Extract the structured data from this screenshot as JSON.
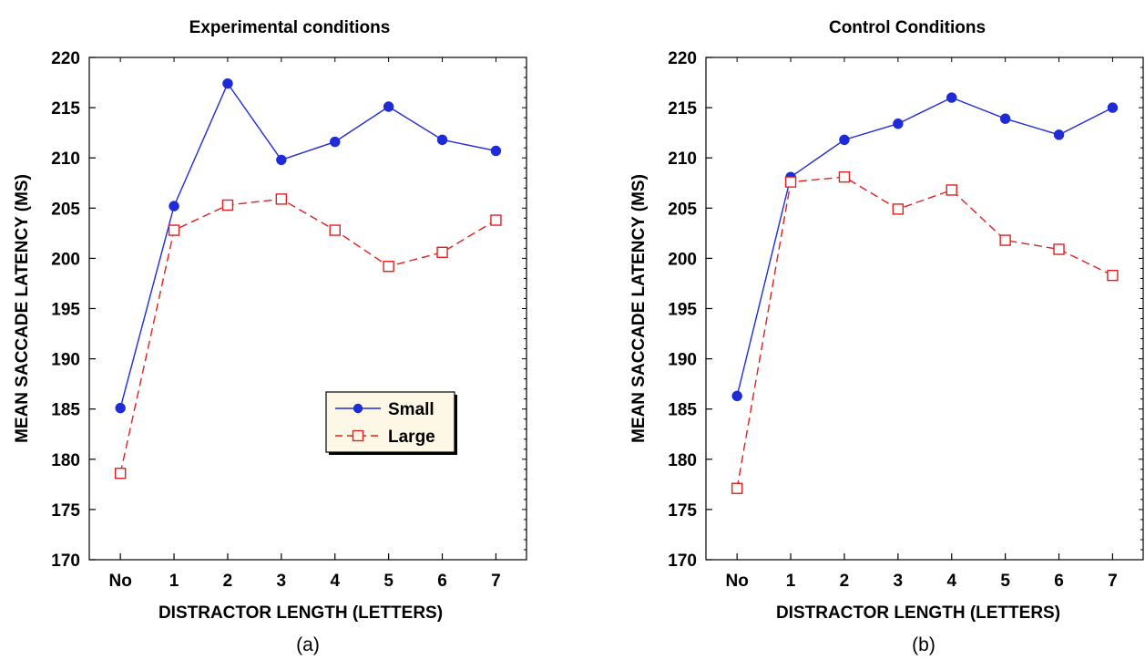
{
  "chart_data": [
    {
      "type": "line",
      "panel_label": "(a)",
      "title": "Experimental conditions",
      "xlabel": "DISTRACTOR LENGTH (LETTERS)",
      "ylabel": "MEAN SACCADE LATENCY (MS)",
      "categories": [
        "No",
        "1",
        "2",
        "3",
        "4",
        "5",
        "6",
        "7"
      ],
      "ylim": [
        170,
        220
      ],
      "yticks": [
        "170",
        "175",
        "180",
        "185",
        "190",
        "195",
        "200",
        "205",
        "210",
        "215",
        "220"
      ],
      "grid": false,
      "legend_position": "bottom-right",
      "series": [
        {
          "name": "Small",
          "color": "#1f2bd6",
          "line": "solid",
          "marker": "filled-circle",
          "values": [
            185.1,
            205.2,
            217.4,
            209.8,
            211.6,
            215.1,
            211.8,
            210.7
          ]
        },
        {
          "name": "Large",
          "color": "#e02020",
          "line": "dashed",
          "marker": "open-square",
          "values": [
            178.6,
            202.8,
            205.3,
            205.9,
            202.8,
            199.2,
            200.6,
            203.8
          ]
        }
      ]
    },
    {
      "type": "line",
      "panel_label": "(b)",
      "title": "Control Conditions",
      "xlabel": "DISTRACTOR LENGTH (LETTERS)",
      "ylabel": "MEAN SACCADE LATENCY (MS)",
      "categories": [
        "No",
        "1",
        "2",
        "3",
        "4",
        "5",
        "6",
        "7"
      ],
      "ylim": [
        170,
        220
      ],
      "yticks": [
        "170",
        "175",
        "180",
        "185",
        "190",
        "195",
        "200",
        "205",
        "210",
        "215",
        "220"
      ],
      "grid": false,
      "legend_position": "none",
      "series": [
        {
          "name": "Small",
          "color": "#1f2bd6",
          "line": "solid",
          "marker": "filled-circle",
          "values": [
            186.3,
            208.1,
            211.8,
            213.4,
            216.0,
            213.9,
            212.3,
            215.0
          ]
        },
        {
          "name": "Large",
          "color": "#e02020",
          "line": "dashed",
          "marker": "open-square",
          "values": [
            177.1,
            207.6,
            208.1,
            204.9,
            206.8,
            201.8,
            200.9,
            198.3
          ]
        }
      ]
    }
  ]
}
